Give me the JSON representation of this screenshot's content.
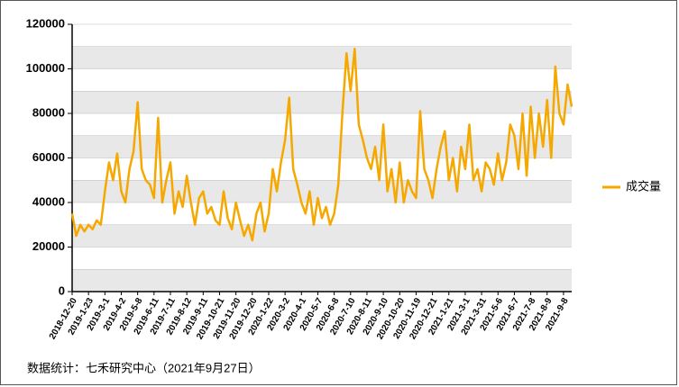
{
  "chart_data": {
    "type": "line",
    "categories": [
      "2018-12-20",
      null,
      null,
      null,
      "2019-1-23",
      null,
      null,
      null,
      "2019-3-1",
      null,
      null,
      null,
      "2019-4-2",
      null,
      null,
      null,
      "2019-5-8",
      null,
      null,
      null,
      "2019-6-11",
      null,
      null,
      null,
      "2019-7-11",
      null,
      null,
      null,
      "2019-8-12",
      null,
      null,
      null,
      "2019-9-11",
      null,
      null,
      null,
      "2019-10-21",
      null,
      null,
      null,
      "2019-11-20",
      null,
      null,
      null,
      "2019-12-20",
      null,
      null,
      null,
      "2020-1-22",
      null,
      null,
      null,
      "2020-3-2",
      null,
      null,
      null,
      "2020-4-1",
      null,
      null,
      null,
      "2020-5-7",
      null,
      null,
      null,
      "2020-6-8",
      null,
      null,
      null,
      "2020-7-10",
      null,
      null,
      null,
      "2020-8-11",
      null,
      null,
      null,
      "2020-9-10",
      null,
      null,
      null,
      "2020-10-20",
      null,
      null,
      null,
      "2020-11-19",
      null,
      null,
      null,
      "2020-12-21",
      null,
      null,
      null,
      "2021-1-21",
      null,
      null,
      null,
      "2021-3-1",
      null,
      null,
      null,
      "2021-3-31",
      null,
      null,
      null,
      "2021-5-6",
      null,
      null,
      null,
      "2021-6-7",
      null,
      null,
      null,
      "2021-7-8",
      null,
      null,
      null,
      "2021-8-9",
      null,
      null,
      null,
      "2021-9-8",
      null,
      null
    ],
    "series": [
      {
        "name": "成交量",
        "color": "#f5a800",
        "values": [
          35000,
          25000,
          30000,
          27000,
          30000,
          28000,
          32000,
          30000,
          45000,
          58000,
          50000,
          62000,
          45000,
          40000,
          55000,
          63000,
          85000,
          55000,
          50000,
          48000,
          42000,
          78000,
          40000,
          50000,
          58000,
          35000,
          45000,
          38000,
          52000,
          40000,
          30000,
          42000,
          45000,
          35000,
          38000,
          32000,
          30000,
          45000,
          33000,
          28000,
          40000,
          32000,
          25000,
          30000,
          23000,
          35000,
          40000,
          27000,
          35000,
          55000,
          45000,
          58000,
          68000,
          87000,
          55000,
          48000,
          40000,
          35000,
          45000,
          30000,
          42000,
          33000,
          38000,
          30000,
          35000,
          48000,
          80000,
          107000,
          90000,
          109000,
          75000,
          68000,
          60000,
          55000,
          65000,
          50000,
          75000,
          45000,
          55000,
          40000,
          58000,
          40000,
          50000,
          45000,
          42000,
          81000,
          55000,
          50000,
          42000,
          55000,
          65000,
          72000,
          50000,
          60000,
          45000,
          65000,
          55000,
          75000,
          50000,
          55000,
          45000,
          58000,
          55000,
          48000,
          62000,
          50000,
          58000,
          75000,
          70000,
          55000,
          80000,
          52000,
          83000,
          60000,
          80000,
          65000,
          86000,
          60000,
          101000,
          80000,
          75000,
          93000,
          83000
        ]
      }
    ],
    "ylim": [
      0,
      120000
    ],
    "yticks": [
      0,
      20000,
      40000,
      60000,
      80000,
      100000,
      120000
    ],
    "legend": "right",
    "source": "数据统计：七禾研究中心（2021年9月27日）"
  }
}
